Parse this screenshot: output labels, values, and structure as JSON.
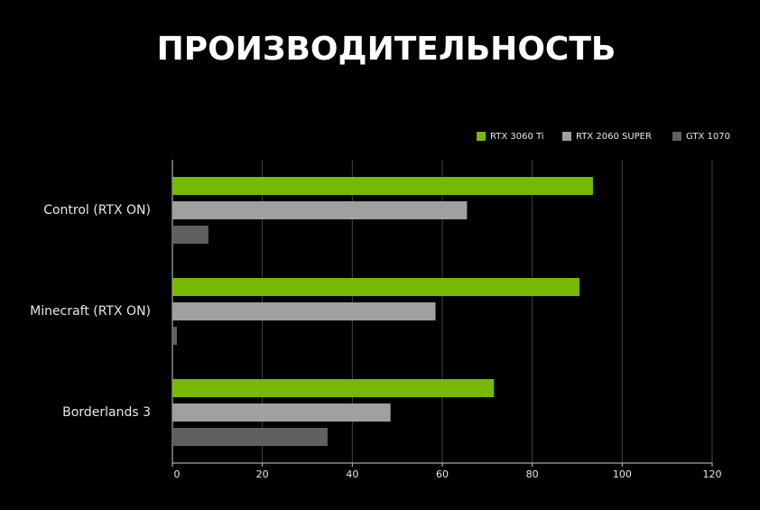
{
  "chart_data": {
    "type": "hbar",
    "title": "ПРОИЗВОДИТЕЛЬНОСТЬ",
    "categories": [
      "Control (RTX ON)",
      "Minecraft (RTX ON)",
      "Borderlands 3"
    ],
    "series": [
      {
        "name": "RTX 3060 Ti",
        "color": "#76b900",
        "values": [
          93.5,
          90.5,
          71.5
        ]
      },
      {
        "name": "RTX 2060 SUPER",
        "color": "#a0a0a0",
        "values": [
          65.5,
          58.5,
          48.5
        ]
      },
      {
        "name": "GTX 1070",
        "color": "#606060",
        "values": [
          8,
          1,
          34.5
        ]
      }
    ],
    "xlim": [
      0,
      120
    ],
    "xticks": [
      0,
      20,
      40,
      60,
      80,
      100,
      120
    ],
    "grid": true,
    "legend": "top-right"
  }
}
